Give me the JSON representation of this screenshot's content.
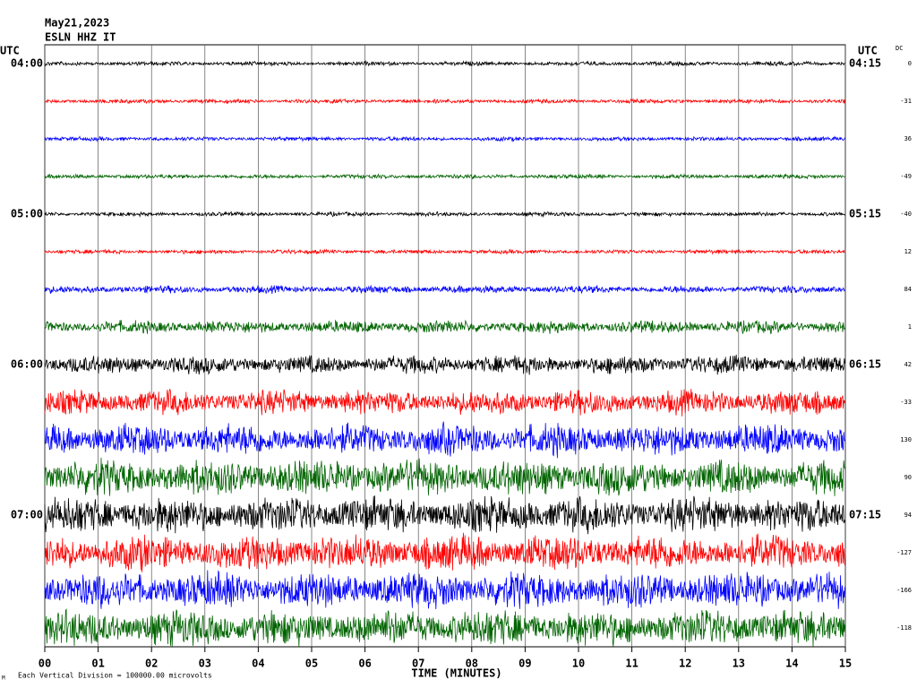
{
  "chart_data": {
    "type": "helicorder",
    "title": "May21,2023",
    "subtitle": "ESLN HHZ IT",
    "left_axis_label": "UTC",
    "right_axis_label": "UTC",
    "dc_label": "DC",
    "x_label": "TIME (MINUTES)",
    "footer": "Each Vertical Division = 100000.00 microvolts",
    "corner_mark": "M",
    "xlim": [
      0,
      15
    ],
    "xticks": [
      {
        "value": 0,
        "label": "00"
      },
      {
        "value": 1,
        "label": "01"
      },
      {
        "value": 2,
        "label": "02"
      },
      {
        "value": 3,
        "label": "03"
      },
      {
        "value": 4,
        "label": "04"
      },
      {
        "value": 5,
        "label": "05"
      },
      {
        "value": 6,
        "label": "06"
      },
      {
        "value": 7,
        "label": "07"
      },
      {
        "value": 8,
        "label": "08"
      },
      {
        "value": 9,
        "label": "09"
      },
      10,
      11,
      12,
      13,
      14,
      15
    ],
    "grid": true,
    "rows": [
      {
        "left": "04:00",
        "right": "04:15",
        "dc": 0,
        "color": "#000000"
      },
      {
        "left": null,
        "right": null,
        "dc": -31,
        "color": "#ff0000"
      },
      {
        "left": null,
        "right": null,
        "dc": 36,
        "color": "#0000ff"
      },
      {
        "left": null,
        "right": null,
        "dc": -49,
        "color": "#006400"
      },
      {
        "left": "05:00",
        "right": "05:15",
        "dc": -40,
        "color": "#000000"
      },
      {
        "left": null,
        "right": null,
        "dc": 12,
        "color": "#ff0000"
      },
      {
        "left": null,
        "right": null,
        "dc": 84,
        "color": "#0000ff"
      },
      {
        "left": null,
        "right": null,
        "dc": 1,
        "color": "#006400"
      },
      {
        "left": "06:00",
        "right": "06:15",
        "dc": 42,
        "color": "#000000"
      },
      {
        "left": null,
        "right": null,
        "dc": -33,
        "color": "#ff0000"
      },
      {
        "left": null,
        "right": null,
        "dc": 130,
        "color": "#0000ff"
      },
      {
        "left": null,
        "right": null,
        "dc": 90,
        "color": "#006400"
      },
      {
        "left": "07:00",
        "right": "07:15",
        "dc": 94,
        "color": "#000000"
      },
      {
        "left": null,
        "right": null,
        "dc": -127,
        "color": "#ff0000"
      },
      {
        "left": null,
        "right": null,
        "dc": -166,
        "color": "#0000ff"
      },
      {
        "left": null,
        "right": null,
        "dc": -118,
        "color": "#006400"
      }
    ]
  }
}
